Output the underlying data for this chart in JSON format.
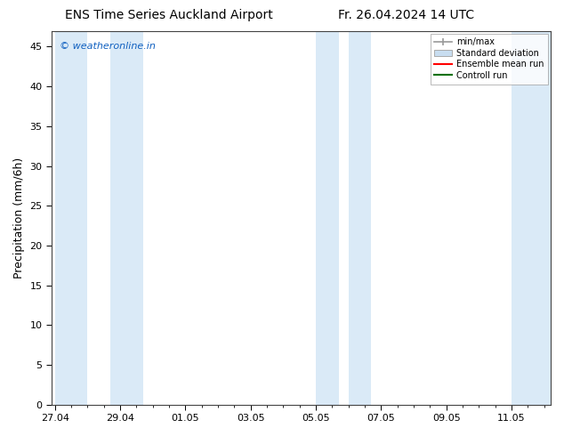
{
  "title_left": "ENS Time Series Auckland Airport",
  "title_right": "Fr. 26.04.2024 14 UTC",
  "ylabel": "Precipitation (mm/6h)",
  "ylim": [
    0,
    47
  ],
  "yticks": [
    0,
    5,
    10,
    15,
    20,
    25,
    30,
    35,
    40,
    45
  ],
  "xtick_labels": [
    "27.04",
    "29.04",
    "01.05",
    "03.05",
    "05.05",
    "07.05",
    "09.05",
    "11.05"
  ],
  "xtick_positions": [
    0,
    2,
    4,
    6,
    8,
    10,
    12,
    14
  ],
  "xlim": [
    -0.1,
    15.2
  ],
  "watermark": "© weatheronline.in",
  "bg_color": "#ffffff",
  "plot_bg_color": "#ffffff",
  "band_color": "#daeaf7",
  "shaded_bands": [
    [
      0.0,
      1.0
    ],
    [
      1.7,
      2.7
    ],
    [
      8.0,
      8.7
    ],
    [
      9.0,
      9.7
    ],
    [
      14.0,
      15.2
    ]
  ],
  "legend_labels": [
    "min/max",
    "Standard deviation",
    "Ensemble mean run",
    "Controll run"
  ],
  "legend_colors": [
    "#aaaaaa",
    "#c8ddf0",
    "#ff0000",
    "#007000"
  ],
  "legend_styles": [
    "errbar",
    "box",
    "line",
    "line"
  ],
  "title_fontsize": 10,
  "tick_fontsize": 8,
  "ylabel_fontsize": 9,
  "watermark_color": "#1060c0",
  "watermark_fontsize": 8
}
